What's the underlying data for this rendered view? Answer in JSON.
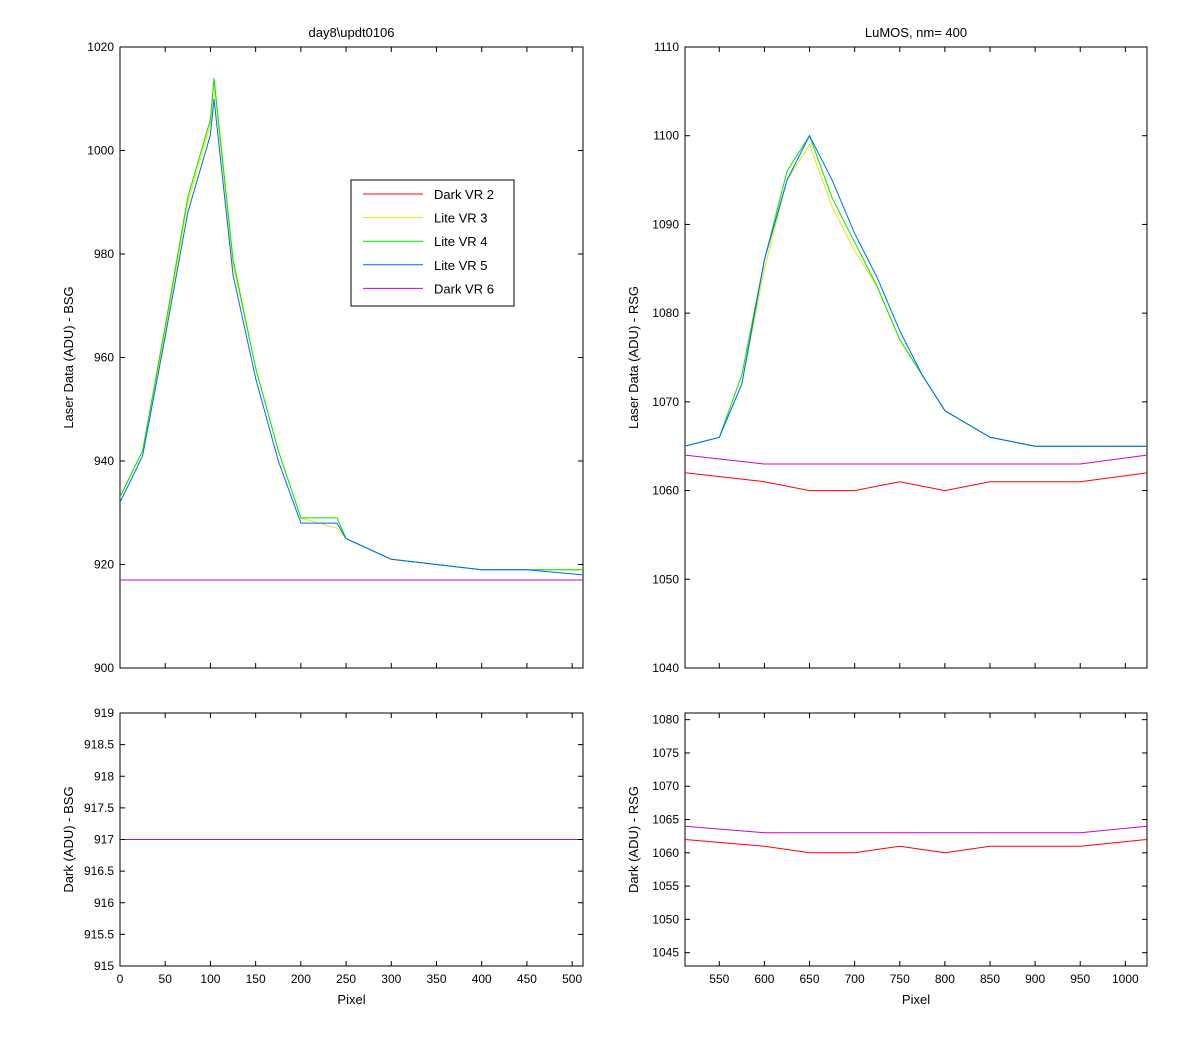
{
  "chart_data": [
    {
      "id": "bsg-laser",
      "type": "line",
      "title": "day8\\updt0106",
      "xlabel": "",
      "ylabel": "Laser Data (ADU) - BSG",
      "xlim": [
        0,
        512
      ],
      "ylim": [
        900,
        1020
      ],
      "xticks": [
        0,
        50,
        100,
        150,
        200,
        250,
        300,
        350,
        400,
        450,
        500
      ],
      "yticks": [
        900,
        920,
        940,
        960,
        980,
        1000,
        1020
      ],
      "show_xtick_labels": false,
      "legend": {
        "position": "inside-top-right"
      },
      "series": [
        {
          "name": "Dark VR 2",
          "color": "#ff0000",
          "x": [
            0,
            64,
            128,
            192,
            256,
            320,
            384,
            448,
            512
          ],
          "values": [
            917,
            917,
            917,
            917,
            917,
            917,
            917,
            917,
            917
          ]
        },
        {
          "name": "Lite VR 3",
          "color": "#e6e600",
          "x": [
            0,
            25,
            50,
            75,
            100,
            104,
            125,
            150,
            175,
            200,
            240,
            250,
            300,
            350,
            400,
            450,
            512
          ],
          "values": [
            933,
            942,
            965,
            990,
            1005,
            1013,
            978,
            958,
            942,
            929,
            927,
            925,
            921,
            920,
            919,
            919,
            919
          ]
        },
        {
          "name": "Lite VR 4",
          "color": "#00e600",
          "x": [
            0,
            25,
            50,
            75,
            100,
            104,
            125,
            150,
            175,
            200,
            240,
            250,
            300,
            350,
            400,
            450,
            512
          ],
          "values": [
            933,
            942,
            966,
            991,
            1006,
            1014,
            979,
            958,
            942,
            929,
            929,
            925,
            921,
            920,
            919,
            919,
            919
          ]
        },
        {
          "name": "Lite VR 5",
          "color": "#0066ff",
          "x": [
            0,
            25,
            50,
            75,
            100,
            104,
            125,
            150,
            175,
            200,
            240,
            250,
            300,
            350,
            400,
            450,
            512
          ],
          "values": [
            932,
            941,
            964,
            988,
            1003,
            1010,
            976,
            956,
            940,
            928,
            928,
            925,
            921,
            920,
            919,
            919,
            918
          ]
        },
        {
          "name": "Dark VR 6",
          "color": "#cc00cc",
          "x": [
            0,
            64,
            128,
            192,
            256,
            320,
            384,
            448,
            512
          ],
          "values": [
            917,
            917,
            917,
            917,
            917,
            917,
            917,
            917,
            917
          ]
        }
      ]
    },
    {
      "id": "rsg-laser",
      "type": "line",
      "title": "LuMOS, nm= 400",
      "xlabel": "",
      "ylabel": "Laser Data (ADU) - RSG",
      "xlim": [
        512,
        1024
      ],
      "ylim": [
        1040,
        1110
      ],
      "xticks": [
        550,
        600,
        650,
        700,
        750,
        800,
        850,
        900,
        950,
        1000
      ],
      "yticks": [
        1040,
        1050,
        1060,
        1070,
        1080,
        1090,
        1100,
        1110
      ],
      "show_xtick_labels": false,
      "series": [
        {
          "name": "Dark VR 2",
          "color": "#ff0000",
          "x": [
            512,
            600,
            650,
            700,
            750,
            800,
            850,
            900,
            950,
            1024
          ],
          "values": [
            1062,
            1061,
            1060,
            1060,
            1061,
            1060,
            1061,
            1061,
            1061,
            1062
          ]
        },
        {
          "name": "Lite VR 3",
          "color": "#e6e600",
          "x": [
            512,
            550,
            575,
            600,
            625,
            650,
            675,
            700,
            725,
            750,
            775,
            800,
            850,
            900,
            950,
            1024
          ],
          "values": [
            1065,
            1066,
            1072,
            1085,
            1095,
            1099,
            1092,
            1087,
            1083,
            1077,
            1073,
            1069,
            1066,
            1065,
            1065,
            1065
          ]
        },
        {
          "name": "Lite VR 4",
          "color": "#00e600",
          "x": [
            512,
            550,
            575,
            600,
            625,
            650,
            675,
            700,
            725,
            750,
            775,
            800,
            850,
            900,
            950,
            1024
          ],
          "values": [
            1065,
            1066,
            1073,
            1086,
            1096,
            1100,
            1093,
            1088,
            1083,
            1077,
            1073,
            1069,
            1066,
            1065,
            1065,
            1065
          ]
        },
        {
          "name": "Lite VR 5",
          "color": "#0066ff",
          "x": [
            512,
            550,
            575,
            600,
            625,
            650,
            675,
            700,
            725,
            750,
            775,
            800,
            850,
            900,
            950,
            1024
          ],
          "values": [
            1065,
            1066,
            1072,
            1086,
            1095,
            1100,
            1095,
            1089,
            1084,
            1078,
            1073,
            1069,
            1066,
            1065,
            1065,
            1065
          ]
        },
        {
          "name": "Dark VR 6",
          "color": "#cc00cc",
          "x": [
            512,
            600,
            650,
            700,
            750,
            800,
            850,
            900,
            950,
            1024
          ],
          "values": [
            1064,
            1063,
            1063,
            1063,
            1063,
            1063,
            1063,
            1063,
            1063,
            1064
          ]
        }
      ]
    },
    {
      "id": "bsg-dark",
      "type": "line",
      "title": "",
      "xlabel": "Pixel",
      "ylabel": "Dark (ADU) - BSG",
      "xlim": [
        0,
        512
      ],
      "ylim": [
        915,
        919
      ],
      "xticks": [
        0,
        50,
        100,
        150,
        200,
        250,
        300,
        350,
        400,
        450,
        500
      ],
      "yticks": [
        915,
        915.5,
        916,
        916.5,
        917,
        917.5,
        918,
        918.5,
        919
      ],
      "show_xtick_labels": true,
      "series": [
        {
          "name": "Dark VR 2",
          "color": "#ff0000",
          "x": [
            0,
            64,
            128,
            192,
            256,
            320,
            384,
            448,
            512
          ],
          "values": [
            917,
            917,
            917,
            917,
            917,
            917,
            917,
            917,
            917
          ]
        },
        {
          "name": "Dark VR 6",
          "color": "#cc00cc",
          "x": [
            0,
            64,
            128,
            192,
            256,
            320,
            384,
            448,
            512
          ],
          "values": [
            917,
            917,
            917,
            917,
            917,
            917,
            917,
            917,
            917
          ]
        }
      ]
    },
    {
      "id": "rsg-dark",
      "type": "line",
      "title": "",
      "xlabel": "Pixel",
      "ylabel": "Dark (ADU) - RSG",
      "xlim": [
        512,
        1024
      ],
      "ylim": [
        1043,
        1081
      ],
      "xticks": [
        550,
        600,
        650,
        700,
        750,
        800,
        850,
        900,
        950,
        1000
      ],
      "yticks": [
        1045,
        1050,
        1055,
        1060,
        1065,
        1070,
        1075,
        1080
      ],
      "show_xtick_labels": true,
      "series": [
        {
          "name": "Dark VR 2",
          "color": "#ff0000",
          "x": [
            512,
            600,
            650,
            700,
            750,
            800,
            850,
            900,
            950,
            1024
          ],
          "values": [
            1062,
            1061,
            1060,
            1060,
            1061,
            1060,
            1061,
            1061,
            1061,
            1062
          ]
        },
        {
          "name": "Dark VR 6",
          "color": "#cc00cc",
          "x": [
            512,
            600,
            650,
            700,
            750,
            800,
            850,
            900,
            950,
            1024
          ],
          "values": [
            1064,
            1063,
            1063,
            1063,
            1063,
            1063,
            1063,
            1063,
            1063,
            1064
          ]
        }
      ]
    }
  ]
}
